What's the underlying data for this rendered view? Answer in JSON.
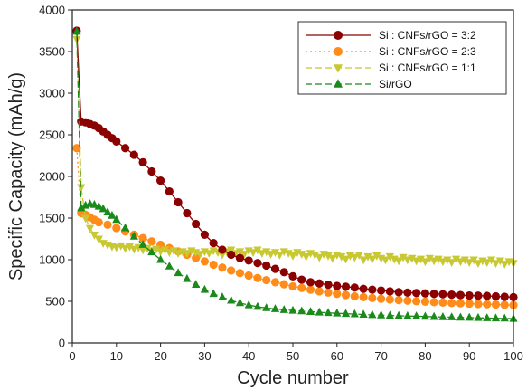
{
  "chart_data": {
    "type": "line",
    "xlabel": "Cycle number",
    "ylabel": "Specific Capacity (mAh/g)",
    "xlim": [
      0,
      100
    ],
    "ylim": [
      0,
      4000
    ],
    "xticks": [
      0,
      10,
      20,
      30,
      40,
      50,
      60,
      70,
      80,
      90,
      100
    ],
    "yticks": [
      0,
      500,
      1000,
      1500,
      2000,
      2500,
      3000,
      3500,
      4000
    ],
    "grid": false,
    "legend_position": "top-right",
    "series": [
      {
        "name": "Si : CNFs/rGO = 3:2",
        "color": "#8b0000",
        "marker": "circle",
        "line_style": "solid",
        "points": [
          [
            1,
            3750
          ],
          [
            2,
            2660
          ],
          [
            3,
            2650
          ],
          [
            4,
            2630
          ],
          [
            5,
            2610
          ],
          [
            6,
            2580
          ],
          [
            7,
            2540
          ],
          [
            8,
            2500
          ],
          [
            9,
            2460
          ],
          [
            10,
            2420
          ],
          [
            12,
            2340
          ],
          [
            14,
            2260
          ],
          [
            16,
            2170
          ],
          [
            18,
            2060
          ],
          [
            20,
            1950
          ],
          [
            22,
            1820
          ],
          [
            24,
            1690
          ],
          [
            26,
            1560
          ],
          [
            28,
            1430
          ],
          [
            30,
            1300
          ],
          [
            32,
            1200
          ],
          [
            34,
            1120
          ],
          [
            36,
            1060
          ],
          [
            38,
            1020
          ],
          [
            40,
            990
          ],
          [
            42,
            960
          ],
          [
            44,
            930
          ],
          [
            46,
            890
          ],
          [
            48,
            850
          ],
          [
            50,
            800
          ],
          [
            52,
            760
          ],
          [
            54,
            730
          ],
          [
            56,
            715
          ],
          [
            58,
            700
          ],
          [
            60,
            685
          ],
          [
            62,
            675
          ],
          [
            64,
            665
          ],
          [
            66,
            650
          ],
          [
            68,
            640
          ],
          [
            70,
            630
          ],
          [
            72,
            620
          ],
          [
            74,
            610
          ],
          [
            76,
            605
          ],
          [
            78,
            600
          ],
          [
            80,
            595
          ],
          [
            82,
            590
          ],
          [
            84,
            585
          ],
          [
            86,
            580
          ],
          [
            88,
            575
          ],
          [
            90,
            570
          ],
          [
            92,
            568
          ],
          [
            94,
            565
          ],
          [
            96,
            560
          ],
          [
            98,
            555
          ],
          [
            100,
            550
          ]
        ]
      },
      {
        "name": "Si : CNFs/rGO = 2:3",
        "color": "#ff8c1a",
        "marker": "circle",
        "line_style": "dotted",
        "points": [
          [
            1,
            2340
          ],
          [
            2,
            1560
          ],
          [
            3,
            1540
          ],
          [
            4,
            1510
          ],
          [
            5,
            1480
          ],
          [
            6,
            1450
          ],
          [
            8,
            1420
          ],
          [
            10,
            1380
          ],
          [
            12,
            1340
          ],
          [
            14,
            1300
          ],
          [
            16,
            1260
          ],
          [
            18,
            1220
          ],
          [
            20,
            1180
          ],
          [
            22,
            1140
          ],
          [
            24,
            1100
          ],
          [
            26,
            1060
          ],
          [
            28,
            1020
          ],
          [
            30,
            980
          ],
          [
            32,
            940
          ],
          [
            34,
            905
          ],
          [
            36,
            870
          ],
          [
            38,
            840
          ],
          [
            40,
            810
          ],
          [
            42,
            780
          ],
          [
            44,
            755
          ],
          [
            46,
            730
          ],
          [
            48,
            705
          ],
          [
            50,
            680
          ],
          [
            52,
            660
          ],
          [
            54,
            640
          ],
          [
            56,
            620
          ],
          [
            58,
            605
          ],
          [
            60,
            590
          ],
          [
            62,
            575
          ],
          [
            64,
            560
          ],
          [
            66,
            550
          ],
          [
            68,
            540
          ],
          [
            70,
            530
          ],
          [
            72,
            522
          ],
          [
            74,
            515
          ],
          [
            76,
            508
          ],
          [
            78,
            502
          ],
          [
            80,
            496
          ],
          [
            82,
            490
          ],
          [
            84,
            485
          ],
          [
            86,
            480
          ],
          [
            88,
            476
          ],
          [
            90,
            472
          ],
          [
            92,
            468
          ],
          [
            94,
            465
          ],
          [
            96,
            462
          ],
          [
            98,
            458
          ],
          [
            100,
            455
          ]
        ]
      },
      {
        "name": "Si : CNFs/rGO = 1:1",
        "color": "#c8c832",
        "marker": "triangle-down",
        "line_style": "dashed",
        "points": [
          [
            1,
            3650
          ],
          [
            2,
            1870
          ],
          [
            3,
            1500
          ],
          [
            4,
            1380
          ],
          [
            5,
            1300
          ],
          [
            6,
            1250
          ],
          [
            7,
            1200
          ],
          [
            8,
            1180
          ],
          [
            9,
            1160
          ],
          [
            10,
            1150
          ],
          [
            11,
            1170
          ],
          [
            12,
            1140
          ],
          [
            13,
            1160
          ],
          [
            14,
            1130
          ],
          [
            15,
            1150
          ],
          [
            16,
            1120
          ],
          [
            17,
            1140
          ],
          [
            18,
            1110
          ],
          [
            19,
            1130
          ],
          [
            20,
            1100
          ],
          [
            21,
            1120
          ],
          [
            22,
            1090
          ],
          [
            23,
            1110
          ],
          [
            24,
            1080
          ],
          [
            25,
            1100
          ],
          [
            26,
            1080
          ],
          [
            27,
            1110
          ],
          [
            28,
            1090
          ],
          [
            29,
            1070
          ],
          [
            30,
            1100
          ],
          [
            31,
            1080
          ],
          [
            32,
            1110
          ],
          [
            33,
            1090
          ],
          [
            34,
            1060
          ],
          [
            35,
            1100
          ],
          [
            36,
            1120
          ],
          [
            37,
            1080
          ],
          [
            38,
            1100
          ],
          [
            39,
            1070
          ],
          [
            40,
            1110
          ],
          [
            41,
            1090
          ],
          [
            42,
            1120
          ],
          [
            43,
            1080
          ],
          [
            44,
            1100
          ],
          [
            45,
            1070
          ],
          [
            46,
            1090
          ],
          [
            47,
            1060
          ],
          [
            48,
            1100
          ],
          [
            49,
            1080
          ],
          [
            50,
            1050
          ],
          [
            51,
            1090
          ],
          [
            52,
            1070
          ],
          [
            53,
            1040
          ],
          [
            54,
            1080
          ],
          [
            55,
            1060
          ],
          [
            56,
            1030
          ],
          [
            57,
            1070
          ],
          [
            58,
            1050
          ],
          [
            59,
            1020
          ],
          [
            60,
            1060
          ],
          [
            61,
            1040
          ],
          [
            62,
            1010
          ],
          [
            63,
            1050
          ],
          [
            64,
            1030
          ],
          [
            65,
            1060
          ],
          [
            66,
            1000
          ],
          [
            67,
            1040
          ],
          [
            68,
            1010
          ],
          [
            69,
            1050
          ],
          [
            70,
            1020
          ],
          [
            71,
            1000
          ],
          [
            72,
            1040
          ],
          [
            73,
            1010
          ],
          [
            74,
            990
          ],
          [
            75,
            1030
          ],
          [
            76,
            1000
          ],
          [
            77,
            1020
          ],
          [
            78,
            990
          ],
          [
            79,
            1010
          ],
          [
            80,
            980
          ],
          [
            81,
            1020
          ],
          [
            82,
            990
          ],
          [
            83,
            1010
          ],
          [
            84,
            980
          ],
          [
            85,
            1000
          ],
          [
            86,
            970
          ],
          [
            87,
            1010
          ],
          [
            88,
            980
          ],
          [
            89,
            1000
          ],
          [
            90,
            970
          ],
          [
            91,
            1000
          ],
          [
            92,
            960
          ],
          [
            93,
            990
          ],
          [
            94,
            970
          ],
          [
            95,
            1000
          ],
          [
            96,
            960
          ],
          [
            97,
            990
          ],
          [
            98,
            950
          ],
          [
            99,
            980
          ],
          [
            100,
            960
          ]
        ]
      },
      {
        "name": "Si/rGO",
        "color": "#1a8a1a",
        "marker": "triangle-up",
        "line_style": "dashed",
        "points": [
          [
            1,
            3740
          ],
          [
            2,
            1620
          ],
          [
            3,
            1650
          ],
          [
            4,
            1670
          ],
          [
            5,
            1660
          ],
          [
            6,
            1640
          ],
          [
            7,
            1610
          ],
          [
            8,
            1570
          ],
          [
            9,
            1530
          ],
          [
            10,
            1480
          ],
          [
            12,
            1380
          ],
          [
            14,
            1280
          ],
          [
            16,
            1180
          ],
          [
            18,
            1090
          ],
          [
            20,
            1000
          ],
          [
            22,
            920
          ],
          [
            24,
            840
          ],
          [
            26,
            770
          ],
          [
            28,
            700
          ],
          [
            30,
            640
          ],
          [
            32,
            590
          ],
          [
            34,
            550
          ],
          [
            36,
            510
          ],
          [
            38,
            480
          ],
          [
            40,
            455
          ],
          [
            42,
            435
          ],
          [
            44,
            420
          ],
          [
            46,
            408
          ],
          [
            48,
            398
          ],
          [
            50,
            390
          ],
          [
            52,
            382
          ],
          [
            54,
            375
          ],
          [
            56,
            368
          ],
          [
            58,
            362
          ],
          [
            60,
            357
          ],
          [
            62,
            352
          ],
          [
            64,
            347
          ],
          [
            66,
            342
          ],
          [
            68,
            338
          ],
          [
            70,
            334
          ],
          [
            72,
            330
          ],
          [
            74,
            327
          ],
          [
            76,
            324
          ],
          [
            78,
            321
          ],
          [
            80,
            318
          ],
          [
            82,
            315
          ],
          [
            84,
            312
          ],
          [
            86,
            310
          ],
          [
            88,
            307
          ],
          [
            90,
            305
          ],
          [
            92,
            302
          ],
          [
            94,
            300
          ],
          [
            96,
            297
          ],
          [
            98,
            295
          ],
          [
            100,
            292
          ]
        ]
      }
    ]
  }
}
